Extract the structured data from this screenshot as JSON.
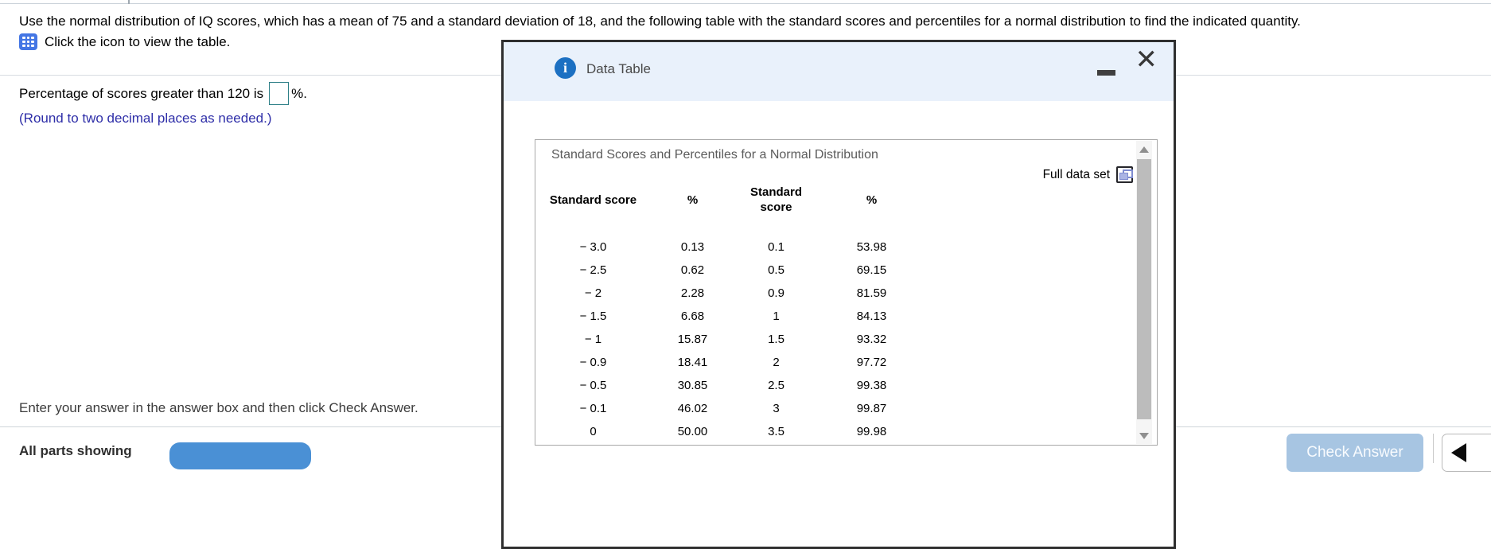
{
  "problem": {
    "instruction": "Use the normal distribution of IQ scores, which has a mean of 75 and a standard deviation of 18, and the following table with the standard scores and percentiles for a normal distribution to find the indicated quantity.",
    "icon_hint": "Click the icon to view the table.",
    "question_prefix": "Percentage of scores greater than 120 is",
    "question_suffix": "%.",
    "answer_value": "",
    "rounding_note": "(Round to two decimal places as needed.)"
  },
  "modal": {
    "title": "Data Table",
    "table": {
      "title": "Standard Scores and Percentiles for a Normal Distribution",
      "full_data_set_label": "Full data set",
      "col_headers": [
        "Standard score",
        "%",
        "Standard score",
        "%"
      ],
      "rows": [
        [
          "− 3.0",
          "0.13",
          "0.1",
          "53.98"
        ],
        [
          "− 2.5",
          "0.62",
          "0.5",
          "69.15"
        ],
        [
          "− 2",
          "2.28",
          "0.9",
          "81.59"
        ],
        [
          "− 1.5",
          "6.68",
          "1",
          "84.13"
        ],
        [
          "− 1",
          "15.87",
          "1.5",
          "93.32"
        ],
        [
          "− 0.9",
          "18.41",
          "2",
          "97.72"
        ],
        [
          "− 0.5",
          "30.85",
          "2.5",
          "99.38"
        ],
        [
          "− 0.1",
          "46.02",
          "3",
          "99.87"
        ],
        [
          "0",
          "50.00",
          "3.5",
          "99.98"
        ]
      ]
    }
  },
  "footer": {
    "helper_text": "Enter your answer in the answer box and then click Check Answer.",
    "all_parts_label": "All parts showing",
    "check_answer_label": "Check Answer"
  },
  "colors": {
    "modal_header_bg": "#e9f1fb",
    "accent_blue": "#4476e4",
    "info_blue": "#1c70c2",
    "check_button_bg": "#a7c5e2",
    "bottom_button_bg": "#4a90d5",
    "input_border_teal": "#2a7d85",
    "rounding_note_blue": "#2e2ea8"
  }
}
